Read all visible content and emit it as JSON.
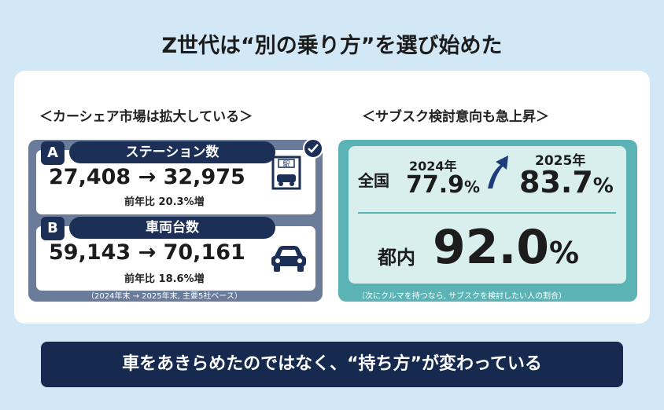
{
  "title": "Z世代は“別の乗り方”を選び始めた",
  "left": {
    "heading": "＜カーシェア市場は拡大している＞",
    "stations": {
      "letter": "A",
      "label": "ステーション数",
      "value": "27,408 → 32,975",
      "delta": "前年比 20.3%増",
      "icon_text": "駅"
    },
    "vehicles": {
      "letter": "B",
      "label": "車両台数",
      "value": "59,143 → 70,161",
      "delta": "前年比 18.6%増"
    },
    "note": "（2024年末 → 2025年末, 主要5社ベース）"
  },
  "right": {
    "heading": "＜サブスク検討意向も急上昇＞",
    "national_label": "全国",
    "year_2024": "2024年",
    "value_2024": "77.9",
    "year_2025": "2025年",
    "value_2025": "83.7",
    "tokyo_label": "都内",
    "tokyo_value": "92.0",
    "pct": "%",
    "note": "（次にクルマを持つなら, サブスクを検討したい人の割合）"
  },
  "banner": "車をあきらめたのではなく、“持ち方”が変わっている",
  "colors": {
    "navy": "#1c2f57",
    "teal": "#5bb3b5",
    "slate": "#6a7c9a",
    "background": "#d3e8f7"
  }
}
